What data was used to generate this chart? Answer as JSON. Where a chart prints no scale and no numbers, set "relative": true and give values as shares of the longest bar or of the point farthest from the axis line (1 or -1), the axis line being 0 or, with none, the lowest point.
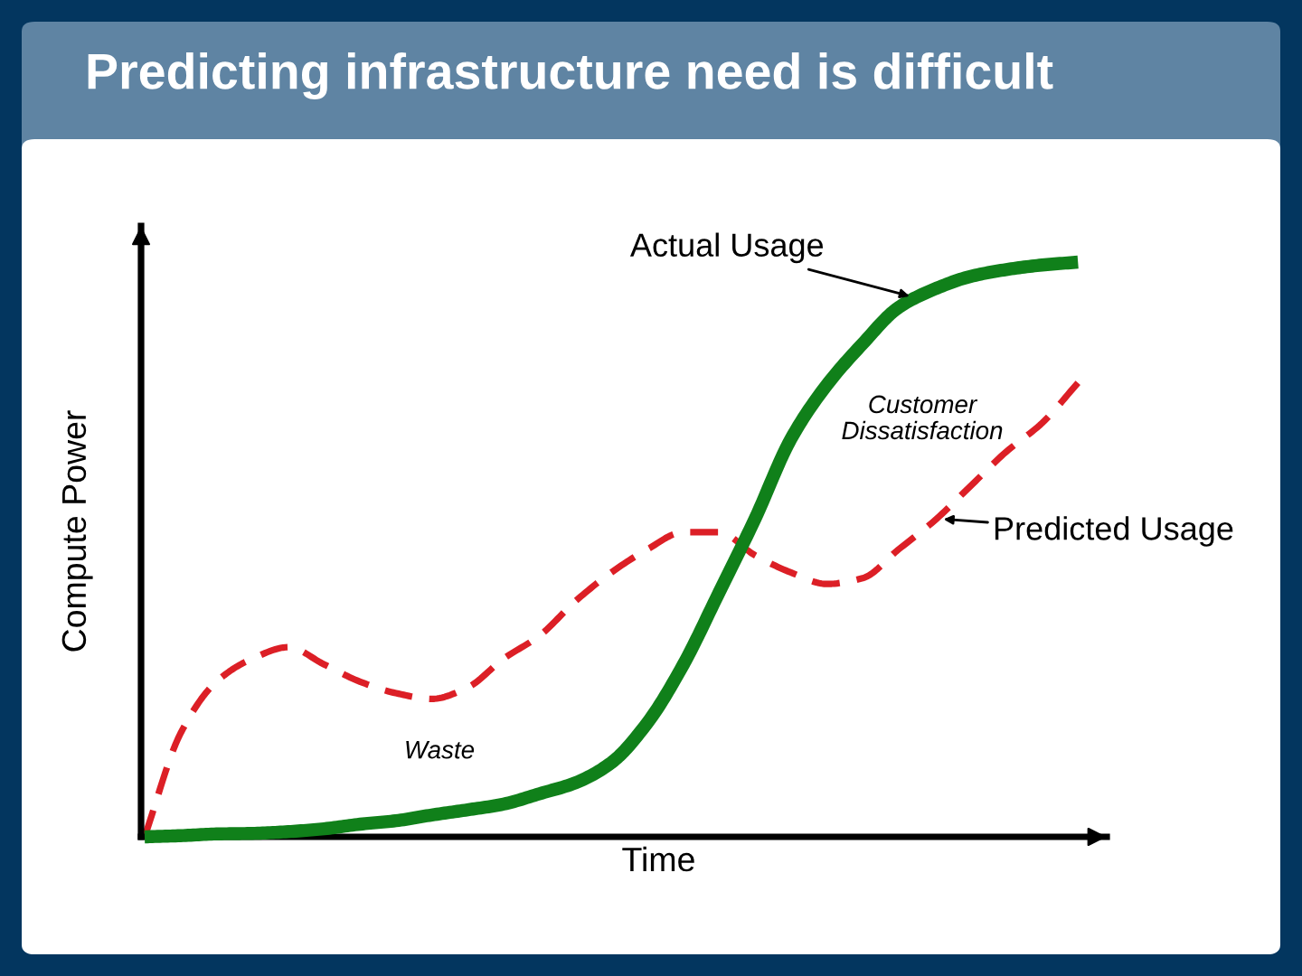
{
  "chart_data": {
    "type": "line",
    "title": "Predicting infrastructure need is difficult",
    "xlabel": "Time",
    "ylabel": "Compute Power",
    "relative": true,
    "categories": [
      null,
      null,
      null,
      null,
      null,
      null,
      null,
      null,
      null,
      null,
      null,
      null,
      null,
      null,
      null,
      null,
      null,
      null,
      null,
      null,
      null,
      null,
      null,
      null,
      null,
      null,
      null
    ],
    "series": [
      {
        "name": "Actual Usage",
        "color": "#10801a",
        "line_style": "solid",
        "values": [
          0,
          0.002,
          0.005,
          0.006,
          0.009,
          0.014,
          0.022,
          0.028,
          0.038,
          0.047,
          0.057,
          0.075,
          0.094,
          0.129,
          0.198,
          0.299,
          0.425,
          0.553,
          0.692,
          0.786,
          0.858,
          0.921,
          0.953,
          0.975,
          0.987,
          0.995,
          1
        ]
      },
      {
        "name": "Predicted Usage",
        "color": "#dc1f26",
        "line_style": "dashed",
        "values": [
          0,
          0.18,
          0.27,
          0.31,
          0.33,
          0.3,
          0.27,
          0.25,
          0.24,
          0.26,
          0.31,
          0.35,
          0.41,
          0.46,
          0.5,
          0.53,
          0.53,
          0.49,
          0.46,
          0.44,
          0.45,
          0.5,
          0.55,
          0.61,
          0.67,
          0.72,
          0.79
        ]
      }
    ],
    "annotations": [
      "Customer\nDissatisfaction",
      "Waste"
    ]
  }
}
